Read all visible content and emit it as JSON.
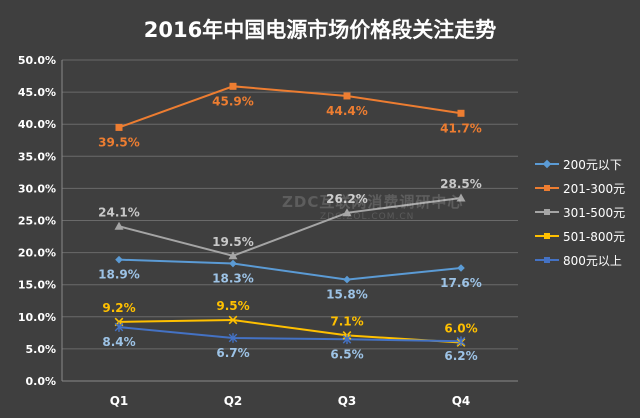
{
  "chart_data": {
    "type": "line",
    "title": "2016年中国电源市场价格段关注走势",
    "categories": [
      "Q1",
      "Q2",
      "Q3",
      "Q4"
    ],
    "ylim": [
      0,
      50
    ],
    "yticks": [
      "0.0%",
      "5.0%",
      "10.0%",
      "15.0%",
      "20.0%",
      "25.0%",
      "30.0%",
      "35.0%",
      "40.0%",
      "45.0%",
      "50.0%"
    ],
    "grid": true,
    "legend_position": "right",
    "series": [
      {
        "name": "200元以下",
        "values": [
          18.9,
          18.3,
          15.8,
          17.6
        ],
        "labels": [
          "18.9%",
          "18.3%",
          "15.8%",
          "17.6%"
        ],
        "color": "#5b9bd5",
        "marker": "diamond",
        "label_color": "#9dc3e6"
      },
      {
        "name": "201-300元",
        "values": [
          39.5,
          45.9,
          44.4,
          41.7
        ],
        "labels": [
          "39.5%",
          "45.9%",
          "44.4%",
          "41.7%"
        ],
        "color": "#ed7d31",
        "marker": "square",
        "label_color": "#ed7d31"
      },
      {
        "name": "301-500元",
        "values": [
          24.1,
          19.5,
          26.2,
          28.5
        ],
        "labels": [
          "24.1%",
          "19.5%",
          "26.2%",
          "28.5%"
        ],
        "color": "#a5a5a5",
        "marker": "triangle",
        "label_color": "#c8c8c8"
      },
      {
        "name": "501-800元",
        "values": [
          9.2,
          9.5,
          7.1,
          6.0
        ],
        "labels": [
          "9.2%",
          "9.5%",
          "7.1%",
          "6.0%"
        ],
        "color": "#ffc000",
        "marker": "x",
        "label_color": "#ffc000"
      },
      {
        "name": "800元以上",
        "values": [
          8.4,
          6.7,
          6.5,
          6.2
        ],
        "labels": [
          "8.4%",
          "6.7%",
          "6.5%",
          "6.2%"
        ],
        "color": "#4472c4",
        "marker": "star",
        "label_color": "#9dc3e6"
      }
    ]
  },
  "watermark": {
    "text": "ZDC互联网消费调研中心",
    "sub": "ZDC.ZOL.COM.CN"
  }
}
